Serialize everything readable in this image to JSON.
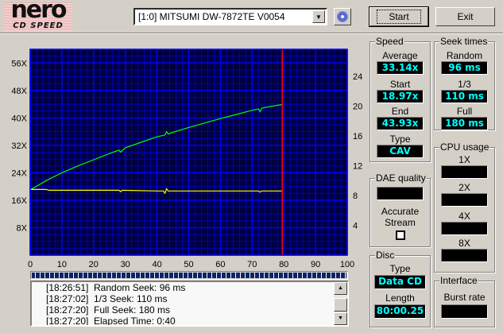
{
  "app": {
    "logo_text": "nero",
    "logo_sub": "CD SPEED"
  },
  "toolbar": {
    "drive": "[1:0]  MITSUMI DW-7872TE V0054",
    "start_label": "Start",
    "exit_label": "Exit",
    "disc_icon": "cd-icon"
  },
  "speed": {
    "title": "Speed",
    "average_label": "Average",
    "average": "33.14x",
    "start_label": "Start",
    "start": "18.97x",
    "end_label": "End",
    "end": "43.93x",
    "type_label": "Type",
    "type": "CAV"
  },
  "seek": {
    "title": "Seek times",
    "random_label": "Random",
    "random": "96 ms",
    "third_label": "1/3",
    "third": "110 ms",
    "full_label": "Full",
    "full": "180 ms"
  },
  "cpu": {
    "title": "CPU usage",
    "labels": [
      "1X",
      "2X",
      "4X",
      "8X"
    ]
  },
  "dae": {
    "title": "DAE quality",
    "accurate_label": "Accurate",
    "stream_label": "Stream",
    "accurate_stream_checked": false
  },
  "disc": {
    "title": "Disc",
    "type_label": "Type",
    "type": "Data CD",
    "length_label": "Length",
    "length": "80:00.25"
  },
  "interface": {
    "title": "Interface",
    "burst_label": "Burst rate"
  },
  "progress": {
    "percent": 100
  },
  "log": [
    {
      "time": "[18:26:51]",
      "msg": "Random Seek: 96 ms"
    },
    {
      "time": "[18:27:02]",
      "msg": "1/3 Seek: 110 ms"
    },
    {
      "time": "[18:27:20]",
      "msg": "Full Seek: 180 ms"
    },
    {
      "time": "[18:27:20]",
      "msg": "Elapsed Time:  0:40"
    }
  ],
  "chart_data": {
    "type": "line",
    "xlim": [
      0,
      100
    ],
    "ylim_left": [
      0,
      60
    ],
    "ylim_right": [
      0,
      27.6
    ],
    "x_ticks": [
      "0",
      "10",
      "20",
      "30",
      "40",
      "50",
      "60",
      "70",
      "80",
      "90",
      "100"
    ],
    "y_left_ticks": [
      "8X",
      "16X",
      "24X",
      "32X",
      "40X",
      "48X",
      "56X"
    ],
    "y_right_ticks": [
      "4",
      "8",
      "12",
      "16",
      "20",
      "24"
    ],
    "grid": true,
    "colors": {
      "background": "#000040",
      "grid": "#0000ff",
      "speed": "#00ff00",
      "rpm": "#ffff00",
      "marker": "#ff0000"
    },
    "series": [
      {
        "axis": "left",
        "color": "#00ff00",
        "x": [
          0,
          5,
          10,
          15,
          20,
          25,
          28,
          28.5,
          30,
          35,
          40,
          42.5,
          43,
          43.5,
          45,
          50,
          55,
          60,
          65,
          70,
          72,
          72.5,
          73,
          75,
          79.5
        ],
        "y": [
          19,
          21.7,
          24,
          26,
          27.8,
          29.6,
          30.6,
          30,
          31.3,
          32.9,
          34.5,
          35,
          36,
          35.3,
          35.8,
          37.2,
          38.5,
          39.8,
          41,
          42.2,
          42.6,
          41.8,
          42.8,
          43.2,
          43.9
        ]
      },
      {
        "axis": "right",
        "color": "#ffff00",
        "x": [
          0,
          5,
          6,
          10,
          20,
          28,
          28.5,
          29,
          40,
          42,
          42.5,
          43,
          43.5,
          45,
          50,
          60,
          72,
          72.5,
          73,
          79.5
        ],
        "y": [
          8.8,
          8.8,
          8.7,
          8.7,
          8.7,
          8.7,
          8.5,
          8.7,
          8.6,
          8.6,
          8.3,
          8.9,
          8.6,
          8.6,
          8.6,
          8.6,
          8.6,
          8.45,
          8.6,
          8.6
        ]
      }
    ],
    "marker_x": 79.5
  }
}
